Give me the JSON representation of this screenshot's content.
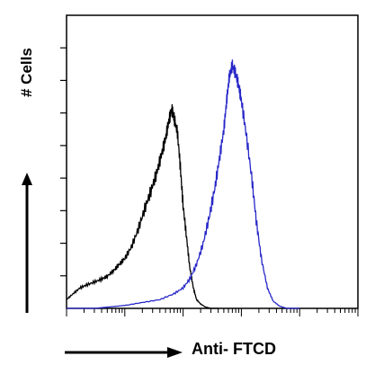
{
  "chart_data": {
    "type": "line",
    "title": "",
    "xlabel": "Anti- FTCD",
    "ylabel": "# Cells",
    "x_scale": "log",
    "xlim": [
      1,
      100000
    ],
    "ylim": [
      0,
      100
    ],
    "grid": false,
    "legend": "none",
    "series": [
      {
        "color": "#000000",
        "x": [
          1,
          1.3,
          1.7,
          2.2,
          3,
          4,
          5,
          6.5,
          8,
          10,
          13,
          17,
          22,
          28,
          35,
          42,
          50,
          57,
          64,
          70,
          80,
          90,
          100,
          115,
          130,
          150,
          170,
          200,
          240,
          300,
          400
        ],
        "values": [
          3,
          5,
          7,
          8,
          9,
          10,
          11,
          13,
          15,
          17,
          21,
          27,
          34,
          40,
          46,
          52,
          58,
          64,
          68,
          65,
          60,
          48,
          35,
          24,
          14,
          7,
          3,
          1.5,
          0.5,
          0,
          0
        ]
      },
      {
        "color": "#2727c8",
        "x": [
          1,
          3,
          10,
          20,
          40,
          70,
          100,
          130,
          170,
          220,
          280,
          350,
          420,
          500,
          560,
          620,
          700,
          800,
          900,
          1000,
          1200,
          1500,
          1800,
          2200,
          2800,
          3500,
          4500,
          6000,
          10000
        ],
        "values": [
          0,
          0,
          1,
          2,
          3,
          5,
          7,
          10,
          15,
          22,
          31,
          41,
          51,
          61,
          71,
          79,
          83,
          80,
          76,
          71,
          60,
          45,
          30,
          17,
          7,
          2.5,
          0.8,
          0,
          0
        ]
      }
    ]
  }
}
